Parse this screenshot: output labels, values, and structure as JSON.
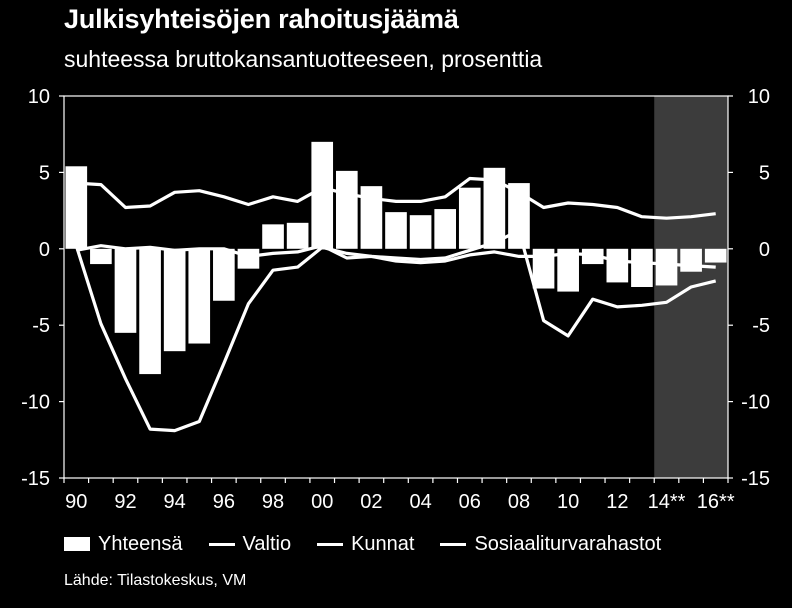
{
  "title": "Julkisyhteisöjen rahoitusjäämä",
  "subtitle": "suhteessa bruttokansantuotteeseen, prosenttia",
  "source": "Lähde: Tilastokeskus, VM",
  "colors": {
    "background": "#000000",
    "foreground": "#ffffff",
    "forecast_shade": "#3c3c3c"
  },
  "chart_data": {
    "type": "bar",
    "title": "Julkisyhteisöjen rahoitusjäämä",
    "subtitle": "suhteessa bruttokansantuotteeseen, prosenttia",
    "years": [
      1990,
      1991,
      1992,
      1993,
      1994,
      1995,
      1996,
      1997,
      1998,
      1999,
      2000,
      2001,
      2002,
      2003,
      2004,
      2005,
      2006,
      2007,
      2008,
      2009,
      2010,
      2011,
      2012,
      2013,
      2014,
      2015,
      2016
    ],
    "tick_labels": [
      "90",
      "92",
      "94",
      "96",
      "98",
      "00",
      "02",
      "04",
      "06",
      "08",
      "10",
      "12",
      "14**",
      "16**"
    ],
    "ylim": [
      -15,
      10
    ],
    "yticks": [
      10,
      5,
      0,
      -5,
      -10,
      -15
    ],
    "forecast_from": 2014,
    "grid": false,
    "legend_position": "bottom",
    "series": [
      {
        "name": "Yhteensä",
        "type": "bar",
        "values": [
          5.4,
          -1.0,
          -5.5,
          -8.2,
          -6.7,
          -6.2,
          -3.4,
          -1.3,
          1.6,
          1.7,
          7.0,
          5.1,
          4.1,
          2.4,
          2.2,
          2.6,
          4.0,
          5.3,
          4.3,
          -2.6,
          -2.8,
          -1.0,
          -2.2,
          -2.5,
          -2.4,
          -1.5,
          -0.9
        ]
      },
      {
        "name": "Valtio",
        "type": "line",
        "values": [
          0.2,
          -4.9,
          -8.5,
          -11.8,
          -11.9,
          -11.3,
          -7.5,
          -3.6,
          -1.4,
          -1.2,
          0.1,
          -0.3,
          -0.5,
          -0.6,
          -0.7,
          -0.6,
          -0.1,
          0.4,
          1.2,
          -4.7,
          -5.7,
          -3.3,
          -3.8,
          -3.7,
          -3.5,
          -2.5,
          -2.1
        ]
      },
      {
        "name": "Kunnat",
        "type": "line",
        "values": [
          -0.1,
          0.2,
          0.0,
          0.1,
          -0.1,
          0.0,
          0.0,
          -0.5,
          -0.3,
          -0.2,
          0.2,
          -0.6,
          -0.5,
          -0.8,
          -0.9,
          -0.8,
          -0.4,
          -0.2,
          -0.5,
          -0.5,
          -0.3,
          -0.4,
          -0.8,
          -0.9,
          -1.0,
          -1.1,
          -1.2
        ]
      },
      {
        "name": "Sosiaaliturvarahastot",
        "type": "line",
        "values": [
          4.3,
          4.2,
          2.7,
          2.8,
          3.7,
          3.8,
          3.4,
          2.9,
          3.4,
          3.1,
          4.0,
          3.6,
          3.3,
          3.1,
          3.1,
          3.4,
          4.6,
          4.5,
          3.7,
          2.7,
          3.0,
          2.9,
          2.7,
          2.1,
          2.0,
          2.1,
          2.3
        ]
      }
    ]
  }
}
